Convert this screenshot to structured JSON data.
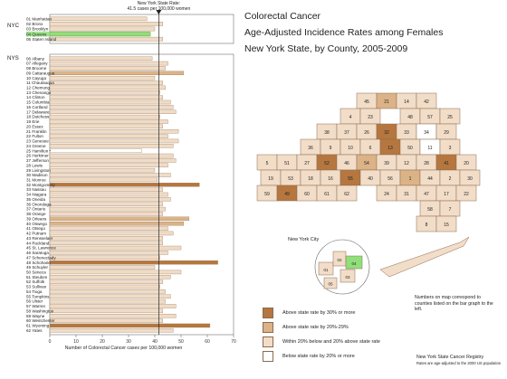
{
  "map": {
    "title": "Colorectal Cancer",
    "subtitle1": "Age-Adjusted Incidence Rates among Females",
    "subtitle2": "New York State, by County, 2005-2009",
    "nyc_label": "New York City",
    "note": "Numbers on map correspond to counties listed on the bar graph to the left.",
    "source1": "New York State Cancer Registry",
    "source2": "Rates are age-adjusted to the 2000 US population",
    "legend": [
      {
        "label": "Above state rate by 30% or more",
        "color": "#b5773f"
      },
      {
        "label": "Above state rate by 20%-29%",
        "color": "#dbb387"
      },
      {
        "label": "Within 20% below and 20% above state rate",
        "color": "#f2ddc8"
      },
      {
        "label": "Below state rate by 20% or more",
        "color": "#ffffff"
      }
    ],
    "county_numbers": [
      "45",
      "21",
      "14",
      "42",
      "4",
      "23",
      "48",
      "57",
      "25",
      "38",
      "37",
      "26",
      "32",
      "33",
      "34",
      "29",
      "36",
      "9",
      "10",
      "6",
      "13",
      "50",
      "11",
      "3",
      "5",
      "51",
      "27",
      "52",
      "46",
      "54",
      "39",
      "12",
      "28",
      "41",
      "20",
      "19",
      "53",
      "18",
      "16",
      "55",
      "40",
      "56",
      "1",
      "44",
      "2",
      "30",
      "59",
      "49",
      "60",
      "61",
      "62",
      "24",
      "31",
      "47",
      "17",
      "22",
      "58",
      "7",
      "8",
      "15",
      "35",
      "43"
    ],
    "nyc_numbers": [
      "01",
      "02",
      "03",
      "04",
      "05"
    ]
  },
  "chart_data": {
    "type": "bar",
    "orientation": "horizontal",
    "reference_line": {
      "label": "New York State Rate:",
      "value": 41.5,
      "value_label": "41.5 cases per 100,000 women"
    },
    "xlabel": "Number of Colorectal Cancer cases per 100,000 women",
    "xlim": [
      0,
      70
    ],
    "xticks": [
      0,
      10,
      20,
      30,
      40,
      50,
      60,
      70
    ],
    "group_labels": [
      "NYC",
      "NYS"
    ],
    "nyc_highlight_color": "#8fe07a",
    "groups": [
      {
        "name": "NYC",
        "categories": [
          "01 Manhattan",
          "02 Bronx",
          "03 Brooklyn",
          "04 Queens",
          "05 Staten Island"
        ],
        "values": [
          37,
          43,
          40,
          38,
          43
        ],
        "levels": [
          2,
          2,
          2,
          2,
          2
        ]
      },
      {
        "name": "NYS",
        "categories": [
          "06 Albany",
          "07 Allegany",
          "08 Broome",
          "09 Cattaraugus",
          "10 Cayuga",
          "11 Chautauqua",
          "12 Chemung",
          "13 Chenango",
          "14 Clinton",
          "15 Columbia",
          "16 Cortland",
          "17 Delaware",
          "18 Dutchess",
          "19 Erie",
          "20 Essex",
          "21 Franklin",
          "22 Fulton",
          "23 Genesee",
          "24 Greene",
          "25 Hamilton *",
          "26 Herkimer",
          "27 Jefferson",
          "28 Lewis",
          "29 Livingston",
          "30 Madison",
          "31 Monroe",
          "32 Montgomery",
          "33 Nassau",
          "34 Niagara",
          "35 Oneida",
          "36 Onondaga",
          "37 Ontario",
          "38 Orange",
          "39 Orleans",
          "40 Oswego",
          "41 Otsego",
          "42 Putnam",
          "43 Rensselaer",
          "44 Rockland",
          "45 St. Lawrence",
          "46 Saratoga",
          "47 Schenectady",
          "48 Schoharie",
          "49 Schuyler",
          "50 Seneca",
          "51 Steuben",
          "52 Suffolk",
          "53 Sullivan",
          "54 Tioga",
          "55 Tompkins",
          "56 Ulster",
          "57 Warren",
          "58 Washington",
          "59 Wayne",
          "60 Westchester",
          "61 Wyoming",
          "62 Yates"
        ],
        "values": [
          39,
          45,
          44,
          51,
          40,
          43,
          44,
          42,
          43,
          46,
          47,
          48,
          42,
          45,
          43,
          49,
          45,
          49,
          47,
          35,
          47,
          48,
          45,
          40,
          46,
          41,
          57,
          43,
          45,
          46,
          43,
          44,
          43,
          53,
          51,
          45,
          47,
          43,
          43,
          50,
          45,
          42,
          64,
          40,
          50,
          46,
          43,
          42,
          44,
          46,
          44,
          48,
          43,
          48,
          43,
          61,
          47
        ],
        "levels": [
          2,
          2,
          2,
          1,
          2,
          2,
          2,
          2,
          2,
          2,
          2,
          2,
          2,
          2,
          2,
          2,
          2,
          2,
          2,
          3,
          2,
          2,
          2,
          2,
          2,
          2,
          0,
          2,
          2,
          2,
          2,
          2,
          2,
          1,
          1,
          2,
          2,
          2,
          2,
          2,
          2,
          2,
          0,
          2,
          2,
          2,
          2,
          2,
          2,
          2,
          2,
          2,
          2,
          2,
          2,
          0,
          2
        ]
      }
    ],
    "highlighted_category": "04 Queens"
  }
}
